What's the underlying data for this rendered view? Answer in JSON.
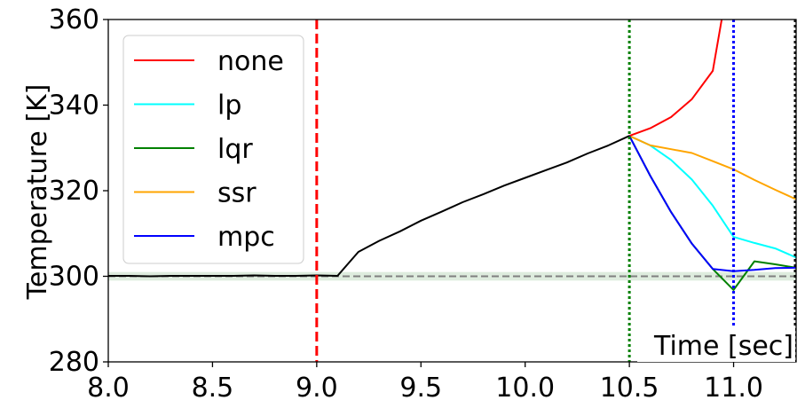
{
  "chart_data": {
    "type": "line",
    "title": "",
    "xlabel": "Time [sec]",
    "ylabel": "Temperature [K]",
    "xlim": [
      8.0,
      11.3
    ],
    "ylim": [
      280,
      360
    ],
    "xticks": [
      8.0,
      8.5,
      9.0,
      9.5,
      10.0,
      10.5,
      11.0
    ],
    "xtick_labels": [
      "8.0",
      "8.5",
      "9.0",
      "9.5",
      "10.0",
      "10.5",
      "11.0"
    ],
    "yticks": [
      280,
      300,
      320,
      340,
      360
    ],
    "ytick_labels": [
      "280",
      "300",
      "320",
      "340",
      "360"
    ],
    "legend_position": "upper-left",
    "reference_line": {
      "y": 300,
      "color": "#808080",
      "band": [
        299,
        301
      ],
      "band_color": "#c8e0c8"
    },
    "vertical_lines": [
      {
        "x": 9.0,
        "color": "#ff0000",
        "style": "dashed"
      },
      {
        "x": 10.5,
        "color": "#008000",
        "style": "dotted"
      },
      {
        "x": 11.0,
        "color": "#0000ff",
        "style": "dotted"
      },
      {
        "x": 11.3,
        "color": "#000000",
        "style": "dotted"
      }
    ],
    "history": {
      "color": "#000000",
      "x": [
        8.0,
        8.1,
        8.2,
        8.3,
        8.4,
        8.5,
        8.6,
        8.7,
        8.8,
        8.9,
        9.0,
        9.1,
        9.2,
        9.3,
        9.4,
        9.5,
        9.6,
        9.7,
        9.8,
        9.9,
        10.0,
        10.1,
        10.2,
        10.3,
        10.4,
        10.5
      ],
      "y": [
        300.1,
        300.1,
        300.0,
        300.1,
        300.1,
        300.1,
        300.1,
        300.2,
        300.1,
        300.1,
        300.2,
        300.1,
        305.7,
        308.3,
        310.5,
        313.0,
        315.1,
        317.3,
        319.2,
        321.2,
        323.0,
        324.8,
        326.6,
        328.7,
        330.6,
        332.8
      ]
    },
    "series": [
      {
        "name": "none",
        "color": "#ff0000",
        "x": [
          10.5,
          10.6,
          10.7,
          10.8,
          10.9,
          10.95
        ],
        "y": [
          332.8,
          334.6,
          337.2,
          341.4,
          348.0,
          362.0
        ]
      },
      {
        "name": "lp",
        "color": "#00ffff",
        "x": [
          10.5,
          10.6,
          10.7,
          10.8,
          10.9,
          11.0,
          11.1,
          11.2,
          11.3
        ],
        "y": [
          332.8,
          330.6,
          327.2,
          322.6,
          316.5,
          309.2,
          307.8,
          306.5,
          304.4
        ]
      },
      {
        "name": "lqr",
        "color": "#008000",
        "x": [
          10.5,
          10.6,
          10.7,
          10.8,
          10.9,
          11.0,
          11.1,
          11.2,
          11.3
        ],
        "y": [
          332.8,
          323.5,
          315.0,
          307.6,
          301.7,
          296.8,
          303.5,
          302.8,
          302.0
        ]
      },
      {
        "name": "ssr",
        "color": "#ffa500",
        "x": [
          10.5,
          10.6,
          10.7,
          10.8,
          10.9,
          11.0,
          11.1,
          11.2,
          11.3
        ],
        "y": [
          332.8,
          330.6,
          329.7,
          328.8,
          326.9,
          325.0,
          322.5,
          320.2,
          318.0
        ]
      },
      {
        "name": "mpc",
        "color": "#0000ff",
        "x": [
          10.5,
          10.6,
          10.7,
          10.8,
          10.9,
          11.0,
          11.1,
          11.2,
          11.3
        ],
        "y": [
          332.8,
          323.5,
          315.0,
          307.6,
          301.7,
          301.2,
          301.5,
          301.9,
          302.0
        ]
      }
    ]
  }
}
